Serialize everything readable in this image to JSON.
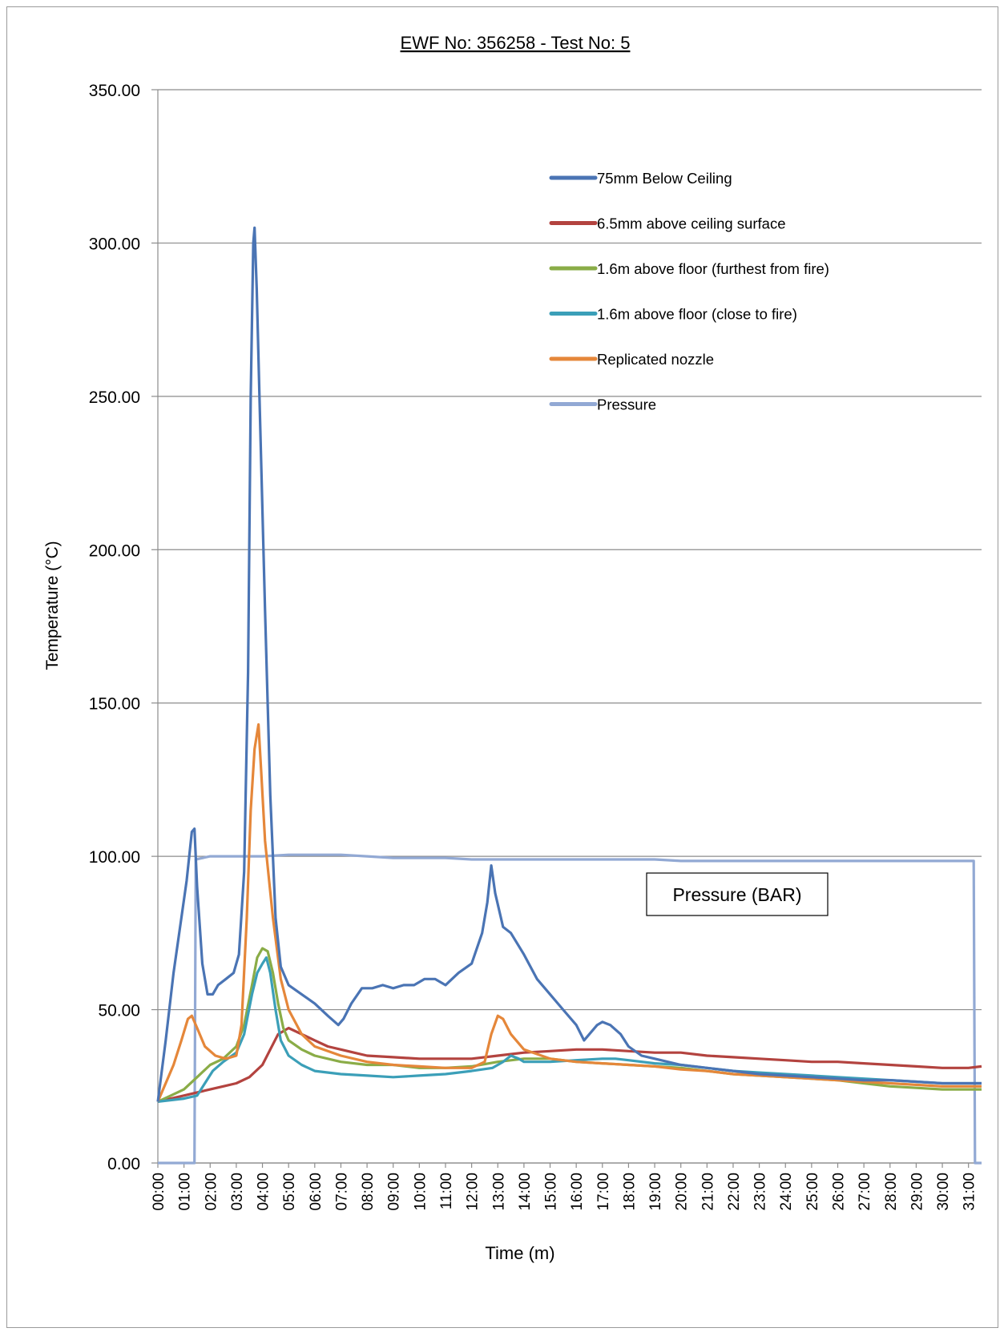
{
  "chart_data": {
    "type": "line",
    "title": "EWF No: 356258 - Test No: 5",
    "xlabel": "Time (m)",
    "ylabel": "Temperature (°C)",
    "ylim": [
      0,
      350
    ],
    "xlim": [
      0,
      31.5
    ],
    "grid": "horizontal",
    "legend_position": "top-right inside plot",
    "yticks": [
      "0.00",
      "50.00",
      "100.00",
      "150.00",
      "200.00",
      "250.00",
      "300.00",
      "350.00"
    ],
    "xticks": [
      "00:00",
      "01:00",
      "02:00",
      "03:00",
      "04:00",
      "05:00",
      "06:00",
      "07:00",
      "08:00",
      "09:00",
      "10:00",
      "11:00",
      "12:00",
      "13:00",
      "14:00",
      "15:00",
      "16:00",
      "17:00",
      "18:00",
      "19:00",
      "20:00",
      "21:00",
      "22:00",
      "23:00",
      "24:00",
      "25:00",
      "26:00",
      "27:00",
      "28:00",
      "29:00",
      "30:00",
      "31:00"
    ],
    "annotation": "Pressure (BAR)",
    "series": [
      {
        "name": "75mm Below Ceiling",
        "color": "#4a74b4",
        "points": [
          [
            0,
            20
          ],
          [
            0.3,
            40
          ],
          [
            0.6,
            62
          ],
          [
            0.9,
            80
          ],
          [
            1.1,
            92
          ],
          [
            1.3,
            108
          ],
          [
            1.4,
            109
          ],
          [
            1.5,
            90
          ],
          [
            1.7,
            65
          ],
          [
            1.9,
            55
          ],
          [
            2.1,
            55
          ],
          [
            2.3,
            58
          ],
          [
            2.6,
            60
          ],
          [
            2.9,
            62
          ],
          [
            3.1,
            68
          ],
          [
            3.3,
            95
          ],
          [
            3.45,
            160
          ],
          [
            3.55,
            250
          ],
          [
            3.65,
            300
          ],
          [
            3.7,
            305
          ],
          [
            3.78,
            285
          ],
          [
            3.9,
            245
          ],
          [
            4.1,
            180
          ],
          [
            4.3,
            120
          ],
          [
            4.5,
            80
          ],
          [
            4.7,
            64
          ],
          [
            5,
            58
          ],
          [
            5.5,
            55
          ],
          [
            6,
            52
          ],
          [
            6.5,
            48
          ],
          [
            6.9,
            45
          ],
          [
            7.1,
            47
          ],
          [
            7.4,
            52
          ],
          [
            7.8,
            57
          ],
          [
            8.2,
            57
          ],
          [
            8.6,
            58
          ],
          [
            9,
            57
          ],
          [
            9.4,
            58
          ],
          [
            9.8,
            58
          ],
          [
            10.2,
            60
          ],
          [
            10.6,
            60
          ],
          [
            11,
            58
          ],
          [
            11.5,
            62
          ],
          [
            12,
            65
          ],
          [
            12.4,
            75
          ],
          [
            12.6,
            85
          ],
          [
            12.75,
            97
          ],
          [
            12.9,
            88
          ],
          [
            13.2,
            77
          ],
          [
            13.5,
            75
          ],
          [
            14,
            68
          ],
          [
            14.5,
            60
          ],
          [
            15,
            55
          ],
          [
            15.5,
            50
          ],
          [
            16,
            45
          ],
          [
            16.3,
            40
          ],
          [
            16.5,
            42
          ],
          [
            16.8,
            45
          ],
          [
            17,
            46
          ],
          [
            17.3,
            45
          ],
          [
            17.7,
            42
          ],
          [
            18,
            38
          ],
          [
            18.5,
            35
          ],
          [
            19,
            34
          ],
          [
            20,
            32
          ],
          [
            21,
            31
          ],
          [
            22,
            30
          ],
          [
            23,
            29
          ],
          [
            24,
            28.5
          ],
          [
            25,
            28
          ],
          [
            26,
            27.5
          ],
          [
            27,
            27
          ],
          [
            28,
            27
          ],
          [
            29,
            26.5
          ],
          [
            30,
            26
          ],
          [
            31,
            26
          ],
          [
            31.5,
            26
          ]
        ]
      },
      {
        "name": "6.5mm above ceiling surface",
        "color": "#b3433f",
        "points": [
          [
            0,
            20
          ],
          [
            0.5,
            21
          ],
          [
            1,
            22
          ],
          [
            1.5,
            23
          ],
          [
            2,
            24
          ],
          [
            2.5,
            25
          ],
          [
            3,
            26
          ],
          [
            3.5,
            28
          ],
          [
            4,
            32
          ],
          [
            4.3,
            37
          ],
          [
            4.6,
            42
          ],
          [
            5,
            44
          ],
          [
            5.5,
            42
          ],
          [
            6,
            40
          ],
          [
            6.5,
            38
          ],
          [
            7,
            37
          ],
          [
            7.5,
            36
          ],
          [
            8,
            35
          ],
          [
            9,
            34.5
          ],
          [
            10,
            34
          ],
          [
            11,
            34
          ],
          [
            12,
            34
          ],
          [
            13,
            35
          ],
          [
            14,
            36
          ],
          [
            15,
            36.5
          ],
          [
            16,
            37
          ],
          [
            17,
            37
          ],
          [
            18,
            36.5
          ],
          [
            19,
            36
          ],
          [
            20,
            36
          ],
          [
            21,
            35
          ],
          [
            22,
            34.5
          ],
          [
            23,
            34
          ],
          [
            24,
            33.5
          ],
          [
            25,
            33
          ],
          [
            26,
            33
          ],
          [
            27,
            32.5
          ],
          [
            28,
            32
          ],
          [
            29,
            31.5
          ],
          [
            30,
            31
          ],
          [
            31,
            31
          ],
          [
            31.5,
            31.5
          ]
        ]
      },
      {
        "name": "1.6m above floor (furthest from fire)",
        "color": "#8aac47",
        "points": [
          [
            0,
            20
          ],
          [
            0.5,
            22
          ],
          [
            1,
            24
          ],
          [
            1.5,
            28
          ],
          [
            2,
            32
          ],
          [
            2.5,
            34
          ],
          [
            3,
            38
          ],
          [
            3.3,
            45
          ],
          [
            3.6,
            58
          ],
          [
            3.8,
            67
          ],
          [
            4,
            70
          ],
          [
            4.2,
            69
          ],
          [
            4.4,
            62
          ],
          [
            4.6,
            52
          ],
          [
            4.8,
            44
          ],
          [
            5,
            40
          ],
          [
            5.5,
            37
          ],
          [
            6,
            35
          ],
          [
            7,
            33
          ],
          [
            8,
            32
          ],
          [
            9,
            32
          ],
          [
            10,
            31
          ],
          [
            11,
            31
          ],
          [
            12,
            31.5
          ],
          [
            13,
            33
          ],
          [
            14,
            34
          ],
          [
            15,
            34
          ],
          [
            16,
            33
          ],
          [
            17,
            32.5
          ],
          [
            18,
            32
          ],
          [
            19,
            31.5
          ],
          [
            20,
            31
          ],
          [
            21,
            30
          ],
          [
            22,
            29
          ],
          [
            23,
            28.5
          ],
          [
            24,
            28
          ],
          [
            25,
            27.5
          ],
          [
            26,
            27
          ],
          [
            27,
            26
          ],
          [
            28,
            25
          ],
          [
            29,
            24.5
          ],
          [
            30,
            24
          ],
          [
            31,
            24
          ],
          [
            31.5,
            24
          ]
        ]
      },
      {
        "name": "1.6m above floor (close to fire)",
        "color": "#3b9fb8",
        "points": [
          [
            0,
            20
          ],
          [
            0.5,
            20.5
          ],
          [
            1,
            21
          ],
          [
            1.5,
            22
          ],
          [
            1.8,
            26
          ],
          [
            2.1,
            30
          ],
          [
            2.5,
            33
          ],
          [
            3,
            36
          ],
          [
            3.3,
            42
          ],
          [
            3.6,
            55
          ],
          [
            3.8,
            62
          ],
          [
            4,
            65
          ],
          [
            4.15,
            67
          ],
          [
            4.3,
            62
          ],
          [
            4.5,
            50
          ],
          [
            4.7,
            40
          ],
          [
            5,
            35
          ],
          [
            5.5,
            32
          ],
          [
            6,
            30
          ],
          [
            7,
            29
          ],
          [
            8,
            28.5
          ],
          [
            9,
            28
          ],
          [
            10,
            28.5
          ],
          [
            11,
            29
          ],
          [
            12,
            30
          ],
          [
            12.8,
            31
          ],
          [
            13.2,
            33
          ],
          [
            13.5,
            35
          ],
          [
            13.8,
            34
          ],
          [
            14,
            33
          ],
          [
            15,
            33
          ],
          [
            16,
            33.5
          ],
          [
            17,
            34
          ],
          [
            17.5,
            34
          ],
          [
            18,
            33.5
          ],
          [
            19,
            32.5
          ],
          [
            20,
            32
          ],
          [
            21,
            31
          ],
          [
            22,
            30
          ],
          [
            23,
            29.5
          ],
          [
            24,
            29
          ],
          [
            25,
            28.5
          ],
          [
            26,
            28
          ],
          [
            27,
            27.5
          ],
          [
            28,
            27
          ],
          [
            29,
            26.5
          ],
          [
            30,
            26
          ],
          [
            31,
            26
          ],
          [
            31.5,
            26
          ]
        ]
      },
      {
        "name": "Replicated nozzle",
        "color": "#e5873a",
        "points": [
          [
            0,
            20
          ],
          [
            0.3,
            26
          ],
          [
            0.6,
            32
          ],
          [
            0.9,
            40
          ],
          [
            1.15,
            47
          ],
          [
            1.3,
            48
          ],
          [
            1.5,
            44
          ],
          [
            1.8,
            38
          ],
          [
            2.2,
            35
          ],
          [
            2.6,
            34
          ],
          [
            3,
            35
          ],
          [
            3.2,
            45
          ],
          [
            3.4,
            80
          ],
          [
            3.55,
            115
          ],
          [
            3.7,
            135
          ],
          [
            3.85,
            143
          ],
          [
            3.95,
            128
          ],
          [
            4.1,
            105
          ],
          [
            4.4,
            80
          ],
          [
            4.7,
            60
          ],
          [
            5,
            50
          ],
          [
            5.5,
            42
          ],
          [
            6,
            38
          ],
          [
            7,
            35
          ],
          [
            8,
            33
          ],
          [
            9,
            32
          ],
          [
            10,
            31.5
          ],
          [
            11,
            31
          ],
          [
            12,
            31
          ],
          [
            12.5,
            33
          ],
          [
            12.75,
            42
          ],
          [
            13,
            48
          ],
          [
            13.2,
            47
          ],
          [
            13.5,
            42
          ],
          [
            14,
            37
          ],
          [
            15,
            34
          ],
          [
            16,
            33
          ],
          [
            17,
            32.5
          ],
          [
            18,
            32
          ],
          [
            19,
            31.5
          ],
          [
            20,
            30.5
          ],
          [
            21,
            30
          ],
          [
            22,
            29
          ],
          [
            23,
            28.5
          ],
          [
            24,
            28
          ],
          [
            25,
            27.5
          ],
          [
            26,
            27
          ],
          [
            27,
            26.5
          ],
          [
            28,
            26
          ],
          [
            29,
            25.5
          ],
          [
            30,
            25
          ],
          [
            31,
            25
          ],
          [
            31.5,
            25
          ]
        ]
      },
      {
        "name": "Pressure",
        "color": "#92a9d4",
        "points": [
          [
            0,
            0
          ],
          [
            1.4,
            0
          ],
          [
            1.45,
            99
          ],
          [
            2,
            100
          ],
          [
            3,
            100
          ],
          [
            4,
            100
          ],
          [
            5,
            100.5
          ],
          [
            6,
            100.5
          ],
          [
            7,
            100.5
          ],
          [
            8,
            100
          ],
          [
            9,
            99.5
          ],
          [
            10,
            99.5
          ],
          [
            11,
            99.5
          ],
          [
            12,
            99
          ],
          [
            13,
            99
          ],
          [
            14,
            99
          ],
          [
            15,
            99
          ],
          [
            16,
            99
          ],
          [
            17,
            99
          ],
          [
            18,
            99
          ],
          [
            19,
            99
          ],
          [
            20,
            98.5
          ],
          [
            21,
            98.5
          ],
          [
            22,
            98.5
          ],
          [
            23,
            98.5
          ],
          [
            24,
            98.5
          ],
          [
            25,
            98.5
          ],
          [
            26,
            98.5
          ],
          [
            27,
            98.5
          ],
          [
            28,
            98.5
          ],
          [
            29,
            98.5
          ],
          [
            30,
            98.5
          ],
          [
            31.2,
            98.5
          ],
          [
            31.25,
            0
          ],
          [
            31.5,
            0
          ]
        ]
      }
    ]
  }
}
